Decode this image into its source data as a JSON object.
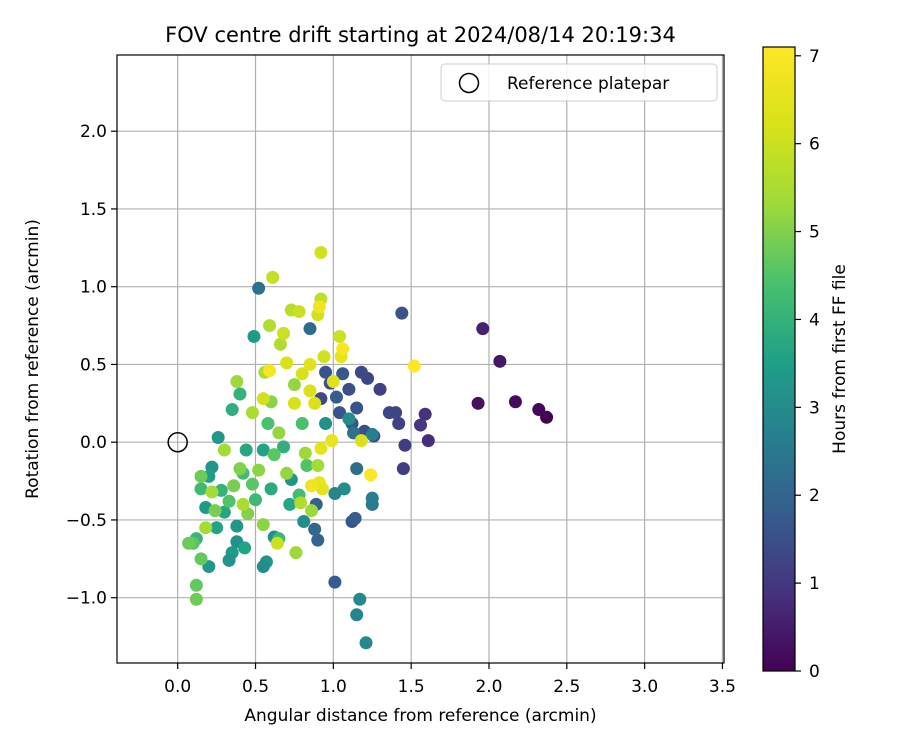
{
  "chart_data": {
    "type": "scatter",
    "title": "FOV centre drift starting at 2024/08/14 20:19:34",
    "xlabel": "Angular distance from reference (arcmin)",
    "ylabel": "Rotation from reference (arcmin)",
    "xlim": [
      -0.39,
      3.51
    ],
    "ylim": [
      -1.42,
      2.49
    ],
    "x_ticks": [
      "0.0",
      "0.5",
      "1.0",
      "1.5",
      "2.0",
      "2.5",
      "3.0",
      "3.5"
    ],
    "x_tick_values": [
      0,
      0.5,
      1.0,
      1.5,
      2.0,
      2.5,
      3.0,
      3.5
    ],
    "y_ticks": [
      "−1.0",
      "−0.5",
      "0.0",
      "0.5",
      "1.0",
      "1.5",
      "2.0"
    ],
    "y_tick_values": [
      -1.0,
      -0.5,
      0.0,
      0.5,
      1.0,
      1.5,
      2.0
    ],
    "grid": true,
    "legend": {
      "position": "top-right",
      "label": "Reference platepar"
    },
    "reference_point": {
      "x": 0.0,
      "y": 0.0
    },
    "colorbar": {
      "label": "Hours from first FF file",
      "range": [
        0,
        7.1
      ],
      "ticks": [
        "0",
        "1",
        "2",
        "3",
        "4",
        "5",
        "6",
        "7"
      ],
      "tick_values": [
        0,
        1,
        2,
        3,
        4,
        5,
        6,
        7
      ],
      "colormap": "viridis"
    },
    "points": [
      {
        "x": 2.37,
        "y": 0.16,
        "h": 0.0
      },
      {
        "x": 2.32,
        "y": 0.21,
        "h": 0.1
      },
      {
        "x": 2.17,
        "y": 0.26,
        "h": 0.2
      },
      {
        "x": 1.93,
        "y": 0.25,
        "h": 0.3
      },
      {
        "x": 2.07,
        "y": 0.52,
        "h": 0.4
      },
      {
        "x": 1.96,
        "y": 0.73,
        "h": 0.6
      },
      {
        "x": 1.61,
        "y": 0.01,
        "h": 0.8
      },
      {
        "x": 1.59,
        "y": 0.18,
        "h": 0.9
      },
      {
        "x": 1.56,
        "y": 0.11,
        "h": 1.0
      },
      {
        "x": 1.46,
        "y": -0.02,
        "h": 1.1
      },
      {
        "x": 1.45,
        "y": -0.17,
        "h": 1.1
      },
      {
        "x": 1.42,
        "y": 0.12,
        "h": 1.2
      },
      {
        "x": 1.4,
        "y": 0.19,
        "h": 1.3
      },
      {
        "x": 1.36,
        "y": 0.19,
        "h": 1.3
      },
      {
        "x": 1.3,
        "y": 0.34,
        "h": 1.2
      },
      {
        "x": 1.26,
        "y": 0.04,
        "h": 1.4
      },
      {
        "x": 1.22,
        "y": 0.41,
        "h": 1.3
      },
      {
        "x": 1.18,
        "y": 0.45,
        "h": 1.4
      },
      {
        "x": 1.44,
        "y": 0.83,
        "h": 1.6
      },
      {
        "x": 1.2,
        "y": 0.07,
        "h": 1.5
      },
      {
        "x": 1.15,
        "y": 0.22,
        "h": 1.6
      },
      {
        "x": 1.12,
        "y": 0.12,
        "h": 1.6
      },
      {
        "x": 1.1,
        "y": 0.34,
        "h": 1.5
      },
      {
        "x": 1.06,
        "y": 0.44,
        "h": 1.7
      },
      {
        "x": 1.04,
        "y": 0.19,
        "h": 1.6
      },
      {
        "x": 1.02,
        "y": 0.29,
        "h": 1.8
      },
      {
        "x": 0.98,
        "y": 0.38,
        "h": 1.5
      },
      {
        "x": 0.95,
        "y": 0.45,
        "h": 1.6
      },
      {
        "x": 0.92,
        "y": 0.28,
        "h": 1.4
      },
      {
        "x": 1.12,
        "y": -0.51,
        "h": 1.6
      },
      {
        "x": 1.14,
        "y": -0.49,
        "h": 1.8
      },
      {
        "x": 1.01,
        "y": -0.9,
        "h": 1.8
      },
      {
        "x": 0.89,
        "y": -0.4,
        "h": 1.9
      },
      {
        "x": 0.9,
        "y": -0.63,
        "h": 2.0
      },
      {
        "x": 0.88,
        "y": -0.56,
        "h": 2.1
      },
      {
        "x": 0.85,
        "y": 0.73,
        "h": 2.1
      },
      {
        "x": 0.52,
        "y": 0.99,
        "h": 2.3
      },
      {
        "x": 1.15,
        "y": -0.17,
        "h": 2.2
      },
      {
        "x": 1.13,
        "y": 0.06,
        "h": 2.3
      },
      {
        "x": 1.25,
        "y": -0.4,
        "h": 2.5
      },
      {
        "x": 1.25,
        "y": -0.36,
        "h": 2.6
      },
      {
        "x": 1.25,
        "y": 0.05,
        "h": 2.7
      },
      {
        "x": 1.17,
        "y": -1.01,
        "h": 2.9
      },
      {
        "x": 1.15,
        "y": -1.11,
        "h": 2.8
      },
      {
        "x": 1.21,
        "y": -1.29,
        "h": 2.9
      },
      {
        "x": 1.1,
        "y": 0.15,
        "h": 3.0
      },
      {
        "x": 1.07,
        "y": -0.3,
        "h": 3.0
      },
      {
        "x": 1.01,
        "y": -0.33,
        "h": 2.8
      },
      {
        "x": 0.95,
        "y": 0.12,
        "h": 3.1
      },
      {
        "x": 0.81,
        "y": -0.51,
        "h": 3.0
      },
      {
        "x": 0.73,
        "y": -0.24,
        "h": 3.2
      },
      {
        "x": 0.62,
        "y": -0.61,
        "h": 3.1
      },
      {
        "x": 0.57,
        "y": -0.77,
        "h": 3.2
      },
      {
        "x": 0.55,
        "y": -0.8,
        "h": 3.0
      },
      {
        "x": 0.49,
        "y": 0.68,
        "h": 3.4
      },
      {
        "x": 0.38,
        "y": -0.64,
        "h": 3.1
      },
      {
        "x": 0.38,
        "y": -0.54,
        "h": 3.3
      },
      {
        "x": 0.35,
        "y": -0.71,
        "h": 3.4
      },
      {
        "x": 0.33,
        "y": -0.76,
        "h": 3.2
      },
      {
        "x": 0.26,
        "y": 0.03,
        "h": 3.3
      },
      {
        "x": 0.22,
        "y": -0.16,
        "h": 3.2
      },
      {
        "x": 0.2,
        "y": -0.8,
        "h": 3.3
      },
      {
        "x": 0.2,
        "y": -0.22,
        "h": 3.5
      },
      {
        "x": 0.18,
        "y": -0.42,
        "h": 3.4
      },
      {
        "x": 0.25,
        "y": -0.55,
        "h": 3.6
      },
      {
        "x": 0.43,
        "y": -0.68,
        "h": 3.6
      },
      {
        "x": 0.3,
        "y": -0.45,
        "h": 3.7
      },
      {
        "x": 0.44,
        "y": -0.05,
        "h": 3.7
      },
      {
        "x": 0.55,
        "y": -0.05,
        "h": 3.6
      },
      {
        "x": 0.6,
        "y": -0.3,
        "h": 3.8
      },
      {
        "x": 0.68,
        "y": -0.03,
        "h": 3.9
      },
      {
        "x": 0.72,
        "y": -0.4,
        "h": 3.7
      },
      {
        "x": 0.35,
        "y": 0.21,
        "h": 3.9
      },
      {
        "x": 0.4,
        "y": 0.31,
        "h": 4.0
      },
      {
        "x": 0.28,
        "y": -0.31,
        "h": 4.0
      },
      {
        "x": 0.12,
        "y": -0.62,
        "h": 4.1
      },
      {
        "x": 0.15,
        "y": -0.3,
        "h": 4.2
      },
      {
        "x": 0.5,
        "y": -0.37,
        "h": 4.2
      },
      {
        "x": 0.42,
        "y": -0.2,
        "h": 4.3
      },
      {
        "x": 0.65,
        "y": -0.62,
        "h": 4.2
      },
      {
        "x": 0.58,
        "y": 0.12,
        "h": 4.4
      },
      {
        "x": 0.8,
        "y": 0.12,
        "h": 4.4
      },
      {
        "x": 0.83,
        "y": -0.15,
        "h": 4.5
      },
      {
        "x": 0.78,
        "y": -0.34,
        "h": 4.3
      },
      {
        "x": 0.62,
        "y": -0.08,
        "h": 4.6
      },
      {
        "x": 0.48,
        "y": -0.27,
        "h": 4.6
      },
      {
        "x": 0.33,
        "y": -0.38,
        "h": 4.5
      },
      {
        "x": 0.1,
        "y": -0.65,
        "h": 4.6
      },
      {
        "x": 0.07,
        "y": -0.65,
        "h": 4.8
      },
      {
        "x": 0.15,
        "y": -0.75,
        "h": 4.7
      },
      {
        "x": 0.12,
        "y": -0.92,
        "h": 4.7
      },
      {
        "x": 0.12,
        "y": -1.01,
        "h": 4.8
      },
      {
        "x": 0.15,
        "y": -0.22,
        "h": 4.8
      },
      {
        "x": 0.24,
        "y": -0.44,
        "h": 4.9
      },
      {
        "x": 0.36,
        "y": -0.28,
        "h": 4.9
      },
      {
        "x": 0.4,
        "y": -0.17,
        "h": 5.0
      },
      {
        "x": 0.45,
        "y": -0.46,
        "h": 5.0
      },
      {
        "x": 0.52,
        "y": -0.18,
        "h": 5.1
      },
      {
        "x": 0.55,
        "y": -0.53,
        "h": 5.1
      },
      {
        "x": 0.6,
        "y": 0.26,
        "h": 5.1
      },
      {
        "x": 0.65,
        "y": 0.06,
        "h": 5.2
      },
      {
        "x": 0.7,
        "y": -0.2,
        "h": 5.2
      },
      {
        "x": 0.75,
        "y": 0.37,
        "h": 5.2
      },
      {
        "x": 0.76,
        "y": -0.71,
        "h": 5.3
      },
      {
        "x": 0.82,
        "y": -0.07,
        "h": 5.3
      },
      {
        "x": 0.86,
        "y": -0.44,
        "h": 5.3
      },
      {
        "x": 0.9,
        "y": -0.15,
        "h": 5.4
      },
      {
        "x": 0.38,
        "y": 0.39,
        "h": 5.3
      },
      {
        "x": 0.3,
        "y": -0.05,
        "h": 5.4
      },
      {
        "x": 0.22,
        "y": -0.32,
        "h": 5.4
      },
      {
        "x": 0.18,
        "y": -0.55,
        "h": 5.4
      },
      {
        "x": 0.42,
        "y": -0.4,
        "h": 5.5
      },
      {
        "x": 0.48,
        "y": 0.19,
        "h": 5.5
      },
      {
        "x": 0.56,
        "y": 0.45,
        "h": 5.5
      },
      {
        "x": 0.59,
        "y": 0.75,
        "h": 5.6
      },
      {
        "x": 0.66,
        "y": 0.63,
        "h": 5.6
      },
      {
        "x": 0.73,
        "y": 0.85,
        "h": 5.7
      },
      {
        "x": 0.79,
        "y": -0.39,
        "h": 5.6
      },
      {
        "x": 0.92,
        "y": 0.92,
        "h": 5.8
      },
      {
        "x": 0.61,
        "y": 1.06,
        "h": 5.9
      },
      {
        "x": 0.92,
        "y": 1.22,
        "h": 6.1
      },
      {
        "x": 0.78,
        "y": 0.84,
        "h": 6.0
      },
      {
        "x": 0.9,
        "y": 0.82,
        "h": 6.1
      },
      {
        "x": 1.04,
        "y": 0.68,
        "h": 6.0
      },
      {
        "x": 0.94,
        "y": 0.55,
        "h": 6.1
      },
      {
        "x": 0.68,
        "y": 0.7,
        "h": 6.0
      },
      {
        "x": 0.7,
        "y": 0.51,
        "h": 6.2
      },
      {
        "x": 0.8,
        "y": 0.44,
        "h": 6.2
      },
      {
        "x": 0.85,
        "y": 0.33,
        "h": 6.3
      },
      {
        "x": 0.88,
        "y": 0.25,
        "h": 6.3
      },
      {
        "x": 0.75,
        "y": 0.25,
        "h": 6.2
      },
      {
        "x": 0.64,
        "y": -0.65,
        "h": 6.0
      },
      {
        "x": 0.55,
        "y": 0.28,
        "h": 6.1
      },
      {
        "x": 0.85,
        "y": 0.5,
        "h": 6.4
      },
      {
        "x": 1.0,
        "y": 0.39,
        "h": 6.4
      },
      {
        "x": 1.05,
        "y": 0.55,
        "h": 6.5
      },
      {
        "x": 1.18,
        "y": 0.01,
        "h": 6.3
      },
      {
        "x": 0.99,
        "y": 0.01,
        "h": 6.6
      },
      {
        "x": 0.92,
        "y": -0.04,
        "h": 6.5
      },
      {
        "x": 0.91,
        "y": -0.26,
        "h": 6.6
      },
      {
        "x": 0.93,
        "y": -0.3,
        "h": 6.5
      },
      {
        "x": 0.86,
        "y": -0.28,
        "h": 6.7
      },
      {
        "x": 0.91,
        "y": 0.87,
        "h": 6.8
      },
      {
        "x": 0.59,
        "y": 0.46,
        "h": 6.9
      },
      {
        "x": 1.06,
        "y": 0.6,
        "h": 6.9
      },
      {
        "x": 1.24,
        "y": -0.21,
        "h": 7.0
      },
      {
        "x": 1.52,
        "y": 0.49,
        "h": 7.1
      }
    ]
  }
}
